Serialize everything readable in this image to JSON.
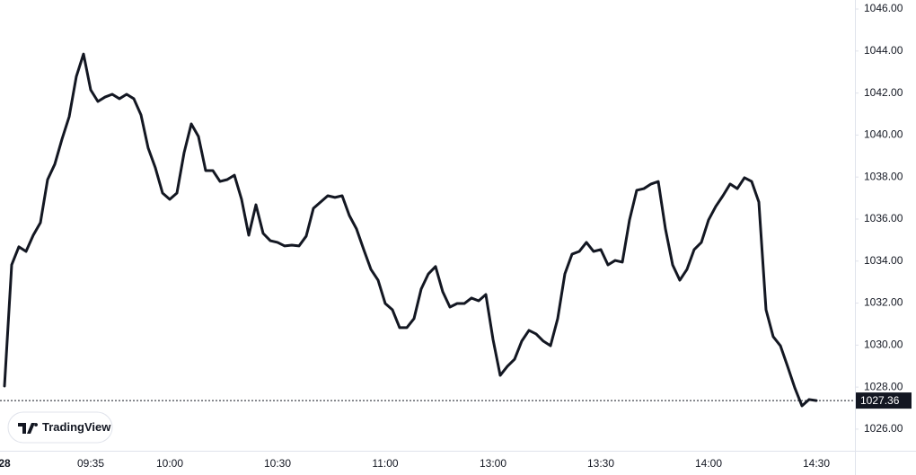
{
  "chart_data": {
    "type": "line",
    "watermark": "TradingView",
    "categories": [
      "28",
      null,
      null,
      null,
      null,
      null,
      null,
      null,
      null,
      null,
      null,
      null,
      "09:35",
      null,
      null,
      null,
      null,
      null,
      null,
      null,
      null,
      null,
      null,
      "10:00",
      null,
      null,
      null,
      null,
      null,
      null,
      null,
      null,
      null,
      null,
      null,
      null,
      null,
      null,
      "10:30",
      null,
      null,
      null,
      null,
      null,
      null,
      null,
      null,
      null,
      null,
      null,
      null,
      null,
      null,
      "11:00",
      null,
      null,
      null,
      null,
      null,
      null,
      null,
      null,
      null,
      null,
      null,
      null,
      null,
      null,
      "13:00",
      null,
      null,
      null,
      null,
      null,
      null,
      null,
      null,
      null,
      null,
      null,
      null,
      null,
      null,
      "13:30",
      null,
      null,
      null,
      null,
      null,
      null,
      null,
      null,
      null,
      null,
      null,
      null,
      null,
      null,
      "14:00",
      null,
      null,
      null,
      null,
      null,
      null,
      null,
      null,
      null,
      null,
      null,
      null,
      null,
      null,
      "14:30"
    ],
    "series": [
      {
        "color": "#131722",
        "values": [
          1028.05,
          1033.82,
          1034.68,
          1034.46,
          1035.23,
          1035.83,
          1037.88,
          1038.61,
          1039.8,
          1040.87,
          1042.79,
          1043.86,
          1042.15,
          1041.6,
          1041.81,
          1041.94,
          1041.73,
          1041.94,
          1041.73,
          1040.96,
          1039.38,
          1038.44,
          1037.24,
          1036.94,
          1037.24,
          1039.16,
          1040.53,
          1039.93,
          1038.31,
          1038.31,
          1037.79,
          1037.88,
          1038.09,
          1036.94,
          1035.23,
          1036.68,
          1035.32,
          1034.97,
          1034.89,
          1034.72,
          1034.76,
          1034.72,
          1035.19,
          1036.51,
          1036.81,
          1037.11,
          1037.03,
          1037.11,
          1036.17,
          1035.53,
          1034.55,
          1033.61,
          1033.09,
          1031.98,
          1031.68,
          1030.83,
          1030.83,
          1031.26,
          1032.67,
          1033.39,
          1033.74,
          1032.54,
          1031.81,
          1031.98,
          1031.98,
          1032.24,
          1032.11,
          1032.41,
          1030.27,
          1028.56,
          1028.99,
          1029.33,
          1030.19,
          1030.7,
          1030.53,
          1030.19,
          1029.97,
          1031.26,
          1033.39,
          1034.33,
          1034.46,
          1034.89,
          1034.46,
          1034.55,
          1033.82,
          1034.03,
          1033.95,
          1035.96,
          1037.37,
          1037.45,
          1037.67,
          1037.79,
          1035.53,
          1033.82,
          1033.09,
          1033.61,
          1034.55,
          1034.89,
          1035.96,
          1036.6,
          1037.11,
          1037.67,
          1037.45,
          1037.97,
          1037.79,
          1036.81,
          1031.68,
          1030.4,
          1029.97,
          1028.99,
          1027.97,
          1027.11,
          1027.41,
          1027.36
        ]
      }
    ],
    "last_price": 1027.36,
    "ylim": [
      1024.97,
      1046.43
    ],
    "yticks": [
      {
        "value": 1026,
        "label": "1026.00"
      },
      {
        "value": 1028,
        "label": "1028.00"
      },
      {
        "value": 1030,
        "label": "1030.00"
      },
      {
        "value": 1032,
        "label": "1032.00"
      },
      {
        "value": 1034,
        "label": "1034.00"
      },
      {
        "value": 1036,
        "label": "1036.00"
      },
      {
        "value": 1038,
        "label": "1038.00"
      },
      {
        "value": 1040,
        "label": "1040.00"
      },
      {
        "value": 1042,
        "label": "1042.00"
      },
      {
        "value": 1044,
        "label": "1044.00"
      },
      {
        "value": 1046,
        "label": "1046.00"
      }
    ]
  }
}
